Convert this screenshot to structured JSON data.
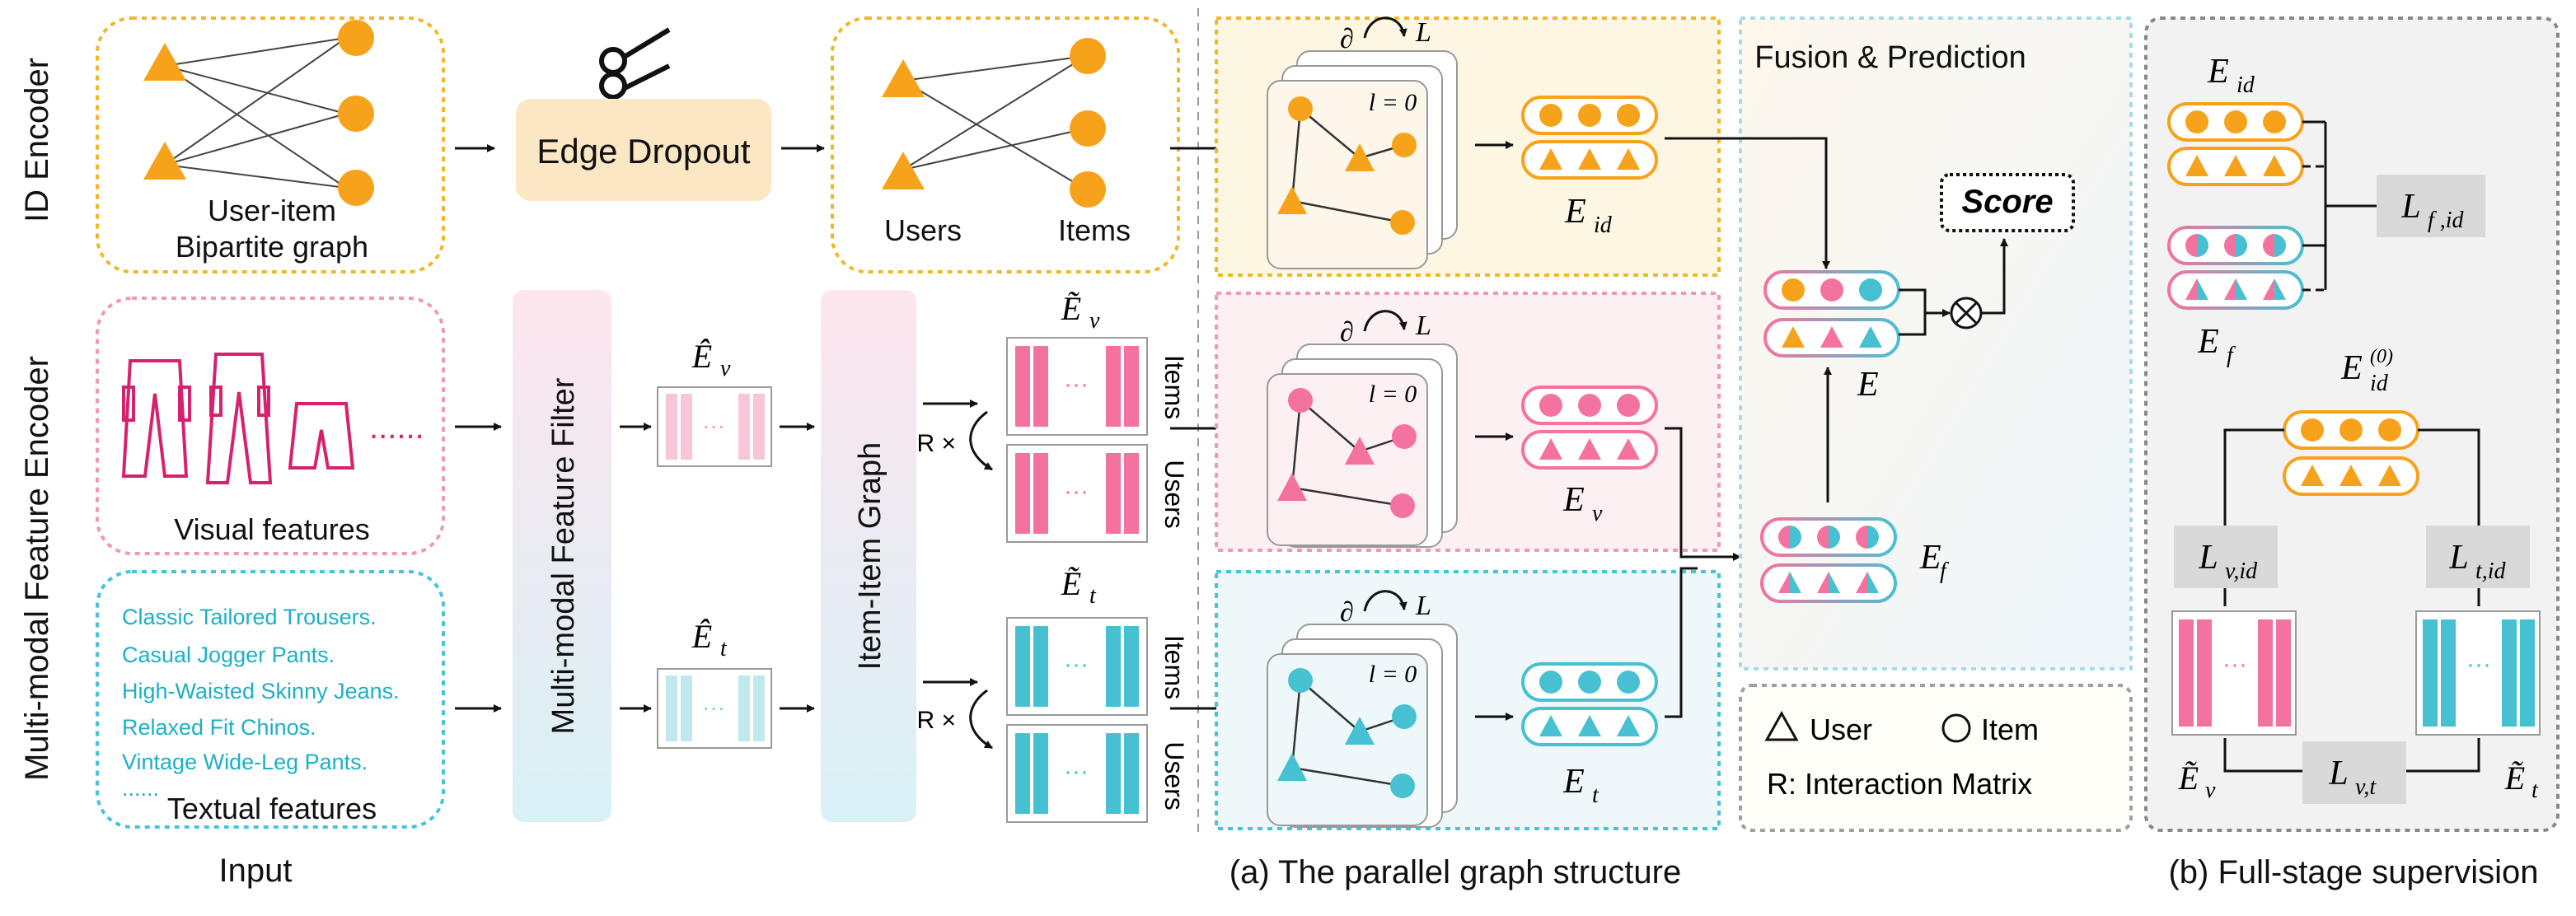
{
  "row_labels": {
    "id_encoder": "ID Encoder",
    "mm_encoder": "Multi-modal Feature Encoder"
  },
  "input": {
    "bipartite_label_1": "User-item",
    "bipartite_label_2": "Bipartite graph",
    "visual_label": "Visual features",
    "textual_label": "Textual features",
    "text_lines": [
      "Classic Tailored Trousers.",
      "Casual Jogger Pants.",
      "High-Waisted Skinny Jeans.",
      "Relaxed Fit Chinos.",
      "Vintage Wide-Leg Pants.",
      "......"
    ],
    "section_title": "Input"
  },
  "edge_dropout": {
    "label": "Edge Dropout"
  },
  "pruned_graph": {
    "users_label": "Users",
    "items_label": "Items"
  },
  "mm_filter": {
    "label": "Multi-modal Feature Filter"
  },
  "item_item_graph": {
    "label": "Item-Item Graph"
  },
  "matrices": {
    "items_label": "Items",
    "users_label": "Users",
    "r_label": "R ×",
    "dots": "···"
  },
  "gnn": {
    "partial": "∂",
    "L": "L",
    "l0": "l = 0"
  },
  "embeddings": {
    "E_id": "E",
    "E_id_sub": "id",
    "E_v": "E",
    "E_v_sub": "v",
    "E_t": "E",
    "E_t_sub": "t",
    "E_f": "E",
    "E_f_sub": "f",
    "E": "E",
    "Ehat_v": "Ê",
    "Ehat_v_sub": "v",
    "Ehat_t": "Ê",
    "Ehat_t_sub": "t",
    "Etilde_v": "Ẽ",
    "Etilde_v_sub": "v",
    "Etilde_t": "Ẽ",
    "Etilde_t_sub": "t",
    "E_id0": "E",
    "E_id0_sub": "id",
    "E_id0_sup": "(0)"
  },
  "fusion": {
    "title": "Fusion & Prediction",
    "score": "Score",
    "otimes": "⊗"
  },
  "legend": {
    "user": "User",
    "item": "Item",
    "r_def": "R: Interaction Matrix"
  },
  "losses": {
    "L_f_id": "L",
    "L_f_id_sub": "f ,id",
    "L_v_id": "L",
    "L_v_id_sub": "v,id",
    "L_t_id": "L",
    "L_t_id_sub": "t,id",
    "L_v_t": "L",
    "L_v_t_sub": "v,t"
  },
  "captions": {
    "a": "(a) The parallel graph structure",
    "b": "(b) Full-stage supervision"
  },
  "colors": {
    "orange": "#f7a21b",
    "pink": "#f4729f",
    "cyan": "#47c1d2",
    "yellow_border": "#f1b826",
    "pink_border": "#ee9ab4",
    "cyan_border": "#46c4da",
    "gray_border": "#8a8a8a",
    "loss_box": "#d9d9d9"
  }
}
